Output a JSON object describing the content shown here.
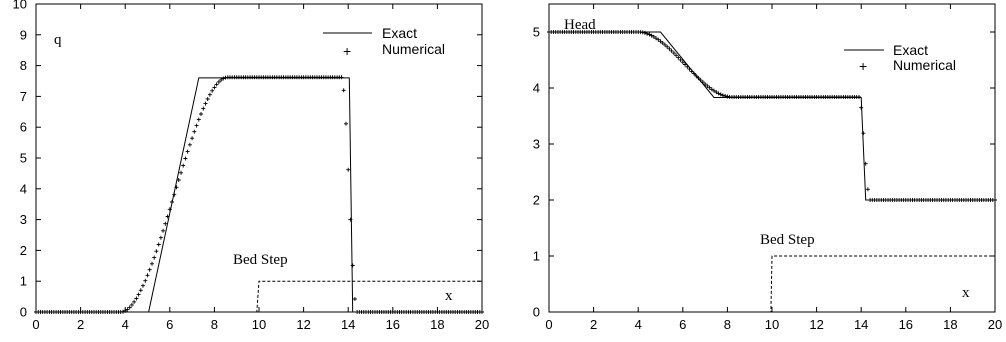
{
  "chart_data": [
    {
      "type": "line",
      "title": "",
      "xlabel": "",
      "ylabel": "",
      "xlim": [
        0,
        20
      ],
      "ylim": [
        0,
        10
      ],
      "xticks": [
        0,
        2,
        4,
        6,
        8,
        10,
        12,
        14,
        16,
        18,
        20
      ],
      "yticks": [
        0,
        1,
        2,
        3,
        4,
        5,
        6,
        7,
        8,
        9,
        10
      ],
      "grid": false,
      "legend_position": "top-right",
      "annotations": {
        "variable": "q",
        "bed": "Bed Step",
        "axis": "x"
      },
      "series": [
        {
          "name": "Exact",
          "style": "solid",
          "x": [
            0,
            5.05,
            7.3,
            14.05,
            14.2,
            20
          ],
          "y": [
            0,
            0,
            7.6,
            7.6,
            0,
            0
          ]
        },
        {
          "name": "Numerical",
          "style": "marker-plus",
          "profile": {
            "toe": 3.8,
            "knee": 8.6,
            "plateau": 7.62,
            "dropStart": 13.7,
            "dropEnd": 14.4
          },
          "spacing": 0.1,
          "xrange": [
            0,
            20
          ]
        },
        {
          "name": "",
          "style": "dashed",
          "x": [
            0,
            9.9,
            10,
            20
          ],
          "y": [
            0,
            0,
            1,
            1
          ]
        }
      ]
    },
    {
      "type": "line",
      "title": "",
      "xlabel": "",
      "ylabel": "",
      "xlim": [
        0,
        20
      ],
      "ylim": [
        0,
        5.5
      ],
      "xticks": [
        0,
        2,
        4,
        6,
        8,
        10,
        12,
        14,
        16,
        18,
        20
      ],
      "yticks": [
        0,
        1,
        2,
        3,
        4,
        5
      ],
      "grid": false,
      "legend_position": "top-right",
      "annotations": {
        "variable": "Head",
        "bed": "Bed Step",
        "axis": "x"
      },
      "series": [
        {
          "name": "Exact",
          "style": "solid",
          "x": [
            0,
            5.0,
            7.4,
            14.0,
            14.2,
            20
          ],
          "y": [
            5.0,
            5.0,
            3.83,
            3.83,
            2.0,
            2.0
          ]
        },
        {
          "name": "Numerical",
          "style": "marker-plus",
          "profile": {
            "start": 4.0,
            "end": 8.2,
            "high": 5.0,
            "mid": 3.84,
            "dropStart": 13.9,
            "dropEnd": 14.4,
            "low": 2.0
          },
          "spacing": 0.1,
          "xrange": [
            0,
            20
          ]
        },
        {
          "name": "",
          "style": "dashed",
          "x": [
            0,
            9.95,
            10,
            20
          ],
          "y": [
            0,
            0,
            1,
            1
          ]
        }
      ]
    }
  ]
}
